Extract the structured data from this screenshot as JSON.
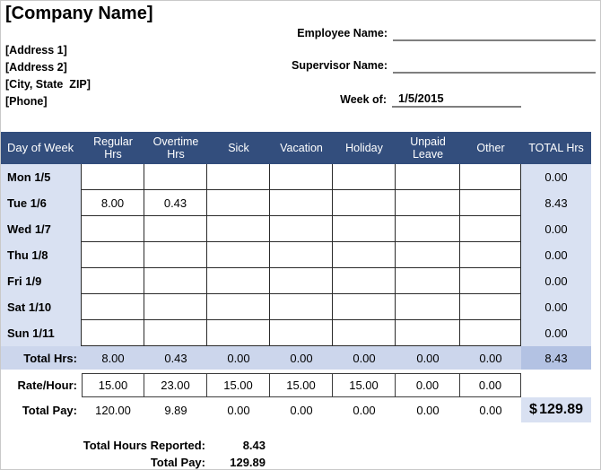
{
  "company": {
    "name": "[Company Name]",
    "address1": "[Address 1]",
    "address2": "[Address 2]",
    "city_state_zip": "[City, State  ZIP]",
    "phone": "[Phone]"
  },
  "meta": {
    "employee_label": "Employee Name:",
    "employee_value": "",
    "supervisor_label": "Supervisor Name:",
    "supervisor_value": "",
    "week_label": "Week of:",
    "week_value": "1/5/2015"
  },
  "table": {
    "columns": [
      "Day of Week",
      "Regular Hrs",
      "Overtime Hrs",
      "Sick",
      "Vacation",
      "Holiday",
      "Unpaid Leave",
      "Other",
      "TOTAL Hrs"
    ],
    "rows": [
      {
        "day": "Mon 1/5",
        "values": [
          "",
          "",
          "",
          "",
          "",
          "",
          ""
        ],
        "total": "0.00"
      },
      {
        "day": "Tue 1/6",
        "values": [
          "8.00",
          "0.43",
          "",
          "",
          "",
          "",
          ""
        ],
        "total": "8.43"
      },
      {
        "day": "Wed 1/7",
        "values": [
          "",
          "",
          "",
          "",
          "",
          "",
          ""
        ],
        "total": "0.00"
      },
      {
        "day": "Thu 1/8",
        "values": [
          "",
          "",
          "",
          "",
          "",
          "",
          ""
        ],
        "total": "0.00"
      },
      {
        "day": "Fri 1/9",
        "values": [
          "",
          "",
          "",
          "",
          "",
          "",
          ""
        ],
        "total": "0.00"
      },
      {
        "day": "Sat 1/10",
        "values": [
          "",
          "",
          "",
          "",
          "",
          "",
          ""
        ],
        "total": "0.00"
      },
      {
        "day": "Sun 1/11",
        "values": [
          "",
          "",
          "",
          "",
          "",
          "",
          ""
        ],
        "total": "0.00"
      }
    ],
    "total_hrs": {
      "label": "Total Hrs:",
      "values": [
        "8.00",
        "0.43",
        "0.00",
        "0.00",
        "0.00",
        "0.00",
        "0.00"
      ],
      "total": "8.43"
    },
    "rate": {
      "label": "Rate/Hour:",
      "values": [
        "15.00",
        "23.00",
        "15.00",
        "15.00",
        "15.00",
        "0.00",
        "0.00"
      ]
    },
    "total_pay": {
      "label": "Total Pay:",
      "values": [
        "120.00",
        "9.89",
        "0.00",
        "0.00",
        "0.00",
        "0.00",
        "0.00"
      ],
      "currency": "$",
      "total": "129.89"
    }
  },
  "summary": {
    "hours_label": "Total Hours Reported:",
    "hours_value": "8.43",
    "pay_label": "Total Pay:",
    "pay_value": "129.89"
  },
  "colors": {
    "header_bg": "#334e7d",
    "header_text": "#ffffff",
    "band_light": "#d9e1f2",
    "band_medium": "#ccd6ec",
    "band_dark": "#b3c2e3",
    "grid_line": "#2a2a2a",
    "underline": "#7f7f7f"
  }
}
